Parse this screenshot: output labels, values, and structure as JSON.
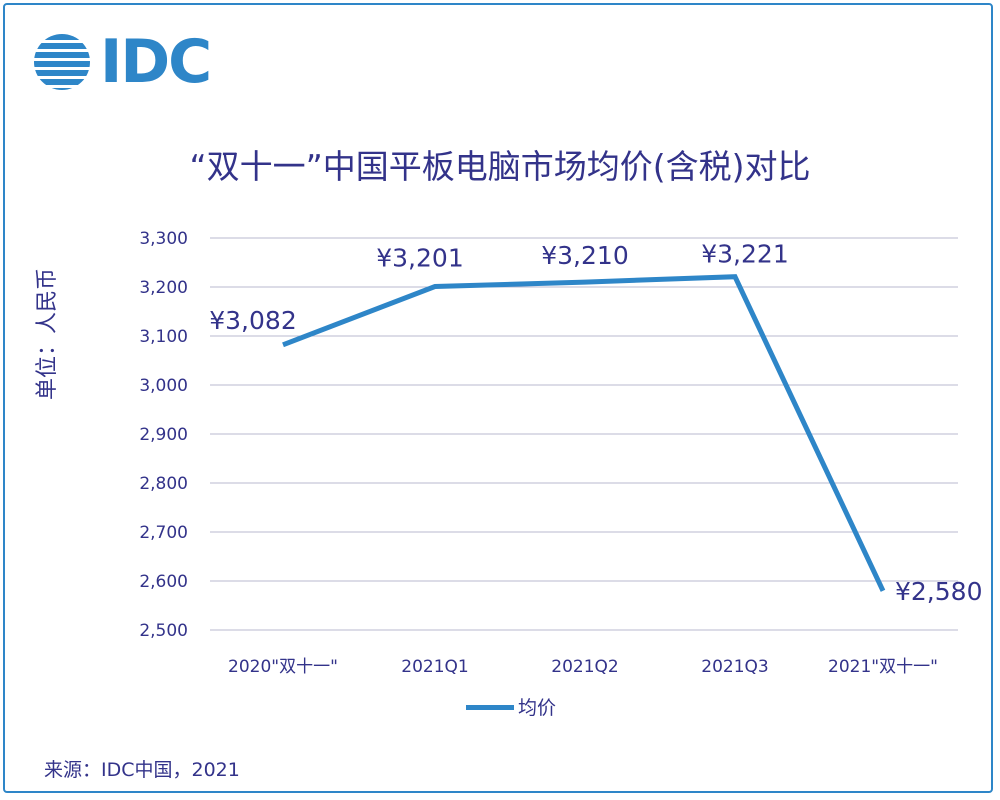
{
  "brand": {
    "logo_text": "IDC",
    "color": "#2e86c8"
  },
  "chart_data": {
    "type": "line",
    "title": "“双十一”中国平板电脑市场均价(含税)对比",
    "ylabel": "单位：人民币",
    "xlabel": "",
    "categories": [
      "2020\"双十一\"",
      "2021Q1",
      "2021Q2",
      "2021Q3",
      "2021\"双十一\""
    ],
    "series": [
      {
        "name": "均价",
        "values": [
          3082,
          3201,
          3210,
          3221,
          2580
        ],
        "color": "#2e86c8"
      }
    ],
    "data_labels": [
      "¥3,082",
      "¥3,201",
      "¥3,210",
      "¥3,221",
      "¥2,580"
    ],
    "ylim": [
      2500,
      3300
    ],
    "yticks": [
      2500,
      2600,
      2700,
      2800,
      2900,
      3000,
      3100,
      3200,
      3300
    ],
    "ytick_labels": [
      "2,500",
      "2,600",
      "2,700",
      "2,800",
      "2,900",
      "3,000",
      "3,100",
      "3,200",
      "3,300"
    ],
    "grid": true,
    "legend": "bottom"
  },
  "source": "来源：IDC中国，2021"
}
